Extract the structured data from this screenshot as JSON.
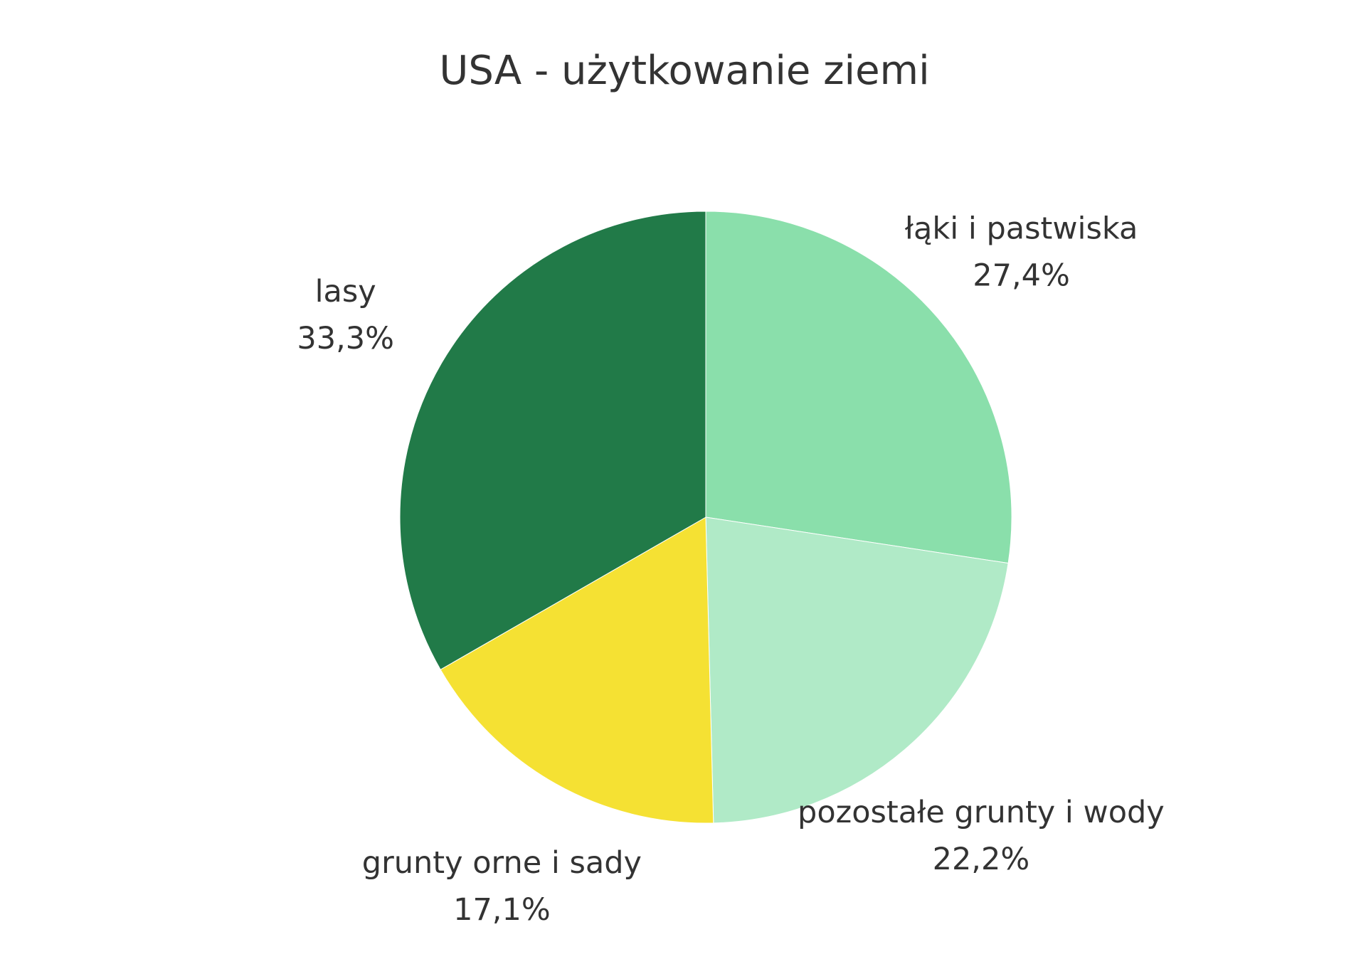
{
  "chart_data": {
    "type": "pie",
    "title": "USA - użytkowanie ziemi",
    "slices": [
      {
        "label": "łąki i pastwiska",
        "value": 27.4,
        "value_label": "27,4%",
        "color": "#8adfab"
      },
      {
        "label": "pozostałe grunty i wody",
        "value": 22.2,
        "value_label": "22,2%",
        "color": "#b0eac7"
      },
      {
        "label": "grunty orne i sady",
        "value": 17.1,
        "value_label": "17,1%",
        "color": "#f5e133"
      },
      {
        "label": "lasy",
        "value": 33.3,
        "value_label": "33,3%",
        "color": "#217a48"
      }
    ],
    "start_angle": "top",
    "direction": "clockwise",
    "label_position": "outside",
    "legend": "none"
  }
}
